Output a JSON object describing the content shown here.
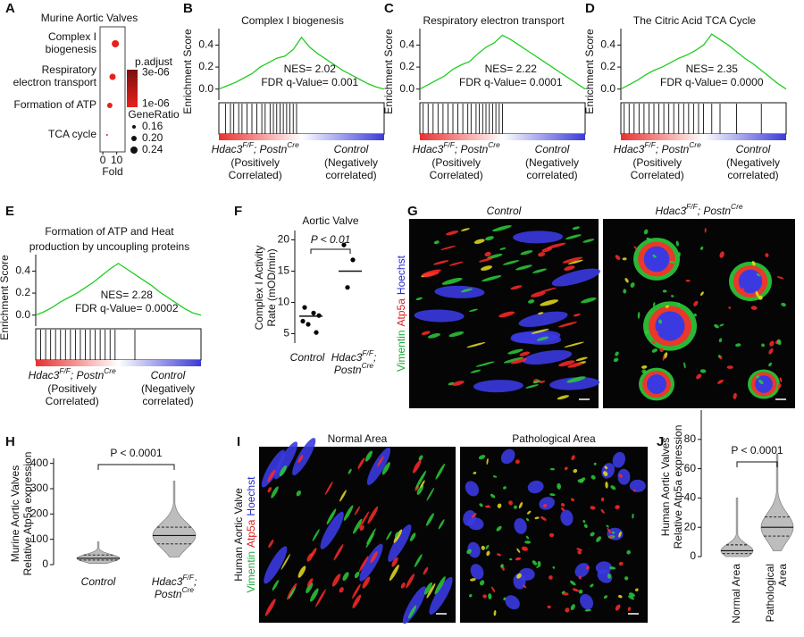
{
  "chart_data": [
    {
      "type": "dot",
      "letter": "A",
      "title": "Murine Aortic Valves",
      "categories": [
        [
          "Complex I",
          "biogenesis"
        ],
        [
          "Respiratory",
          "electron transport"
        ],
        [
          "Formation of ATP"
        ],
        [
          "TCA cycle"
        ]
      ],
      "fold": [
        9,
        7,
        5,
        3
      ],
      "gene_ratio": [
        0.24,
        0.22,
        0.2,
        0.12
      ],
      "p_adjust": [
        2e-07,
        5e-07,
        8e-07,
        1.2e-06
      ],
      "xlim": [
        -2,
        16
      ],
      "xticks": [
        0,
        10
      ],
      "xlabel": "Fold",
      "color_legend": {
        "title": "p.adjust",
        "ticks": [
          {
            "value": 3e-06,
            "label": "3e-06"
          },
          {
            "value": 1e-06,
            "label": "1e-06"
          }
        ],
        "low_color": "#e8201c",
        "high_color": "#7a1010"
      },
      "size_legend": {
        "title": "GeneRatio",
        "values": [
          {
            "value": 0.16,
            "label": "0.16"
          },
          {
            "value": 0.2,
            "label": "0.20"
          },
          {
            "value": 0.24,
            "label": "0.24"
          }
        ]
      }
    },
    {
      "type": "gsea",
      "letter": "B",
      "title": [
        "Complex I biogenesis"
      ],
      "ylabel": "Enrichment Score",
      "ylim": [
        -0.1,
        0.55
      ],
      "yticks": [
        {
          "value": 0,
          "label": "0.0"
        },
        0.2,
        0.4
      ],
      "es": [
        0,
        0.03,
        0.06,
        0.1,
        0.14,
        0.2,
        0.24,
        0.28,
        0.3,
        0.36,
        0.47,
        0.38,
        0.32,
        0.27,
        0.22,
        0.17,
        0.13,
        0.09,
        0.05,
        0.02,
        0
      ],
      "hits": [
        0.04,
        0.07,
        0.09,
        0.12,
        0.14,
        0.17,
        0.2,
        0.23,
        0.26,
        0.28,
        0.31,
        0.33,
        0.35,
        0.37,
        0.39,
        0.41,
        0.43,
        0.45,
        0.47
      ],
      "nes_text": "NES= 2.02",
      "fdr_text": "FDR q-Value= 0.001",
      "pos_label": [
        "Hdac3",
        "F/F",
        "; Postn",
        "Cre"
      ],
      "pos_sub": [
        "(Positively",
        "Correlated)"
      ],
      "neg_label": "Control",
      "neg_sub": [
        "(Negatively",
        "correlated)"
      ],
      "curve_color": "#22cc22",
      "pos_color": "#e8312f",
      "neg_color": "#3b3bd6"
    },
    {
      "type": "gsea",
      "letter": "C",
      "title": [
        "Respiratory electron transport"
      ],
      "ylabel": "Enrichment Score",
      "ylim": [
        -0.1,
        0.55
      ],
      "yticks": [
        {
          "value": 0,
          "label": "0.0"
        },
        0.2,
        0.4
      ],
      "es": [
        0,
        0.04,
        0.08,
        0.12,
        0.18,
        0.22,
        0.25,
        0.32,
        0.38,
        0.42,
        0.49,
        0.45,
        0.4,
        0.35,
        0.3,
        0.25,
        0.2,
        0.15,
        0.1,
        0.05,
        0
      ],
      "hits": [
        0.02,
        0.05,
        0.08,
        0.11,
        0.14,
        0.17,
        0.2,
        0.23,
        0.26,
        0.29,
        0.31,
        0.34,
        0.36,
        0.38,
        0.4,
        0.42,
        0.44,
        0.46,
        0.48,
        0.5
      ],
      "nes_text": "NES= 2.22",
      "fdr_text": "FDR q-Value= 0.0001",
      "pos_label": [
        "Hdac3",
        "F/F",
        "; Postn",
        "Cre"
      ],
      "pos_sub": [
        "(Positively",
        "Correlated)"
      ],
      "neg_label": "Control",
      "neg_sub": [
        "(Negatively",
        "correlated)"
      ],
      "curve_color": "#22cc22",
      "pos_color": "#e8312f",
      "neg_color": "#3b3bd6"
    },
    {
      "type": "gsea",
      "letter": "D",
      "title": [
        "The Citric Acid TCA Cycle"
      ],
      "ylabel": "Enrichment Score",
      "ylim": [
        -0.1,
        0.55
      ],
      "yticks": [
        {
          "value": 0,
          "label": "0.0"
        },
        0.2,
        0.4
      ],
      "es": [
        0,
        0.04,
        0.08,
        0.13,
        0.17,
        0.2,
        0.24,
        0.28,
        0.31,
        0.35,
        0.4,
        0.5,
        0.45,
        0.4,
        0.34,
        0.28,
        0.23,
        0.17,
        0.11,
        0.05,
        0
      ],
      "hits": [
        0.02,
        0.05,
        0.08,
        0.11,
        0.14,
        0.17,
        0.2,
        0.23,
        0.26,
        0.29,
        0.32,
        0.35,
        0.38,
        0.41,
        0.44,
        0.47,
        0.5,
        0.55,
        0.6,
        0.7,
        0.85
      ],
      "nes_text": "NES= 2.35",
      "fdr_text": "FDR q-Value= 0.0000",
      "pos_label": [
        "Hdac3",
        "F/F",
        "; Postn",
        "Cre"
      ],
      "pos_sub": [
        "(Positively",
        "Correlated)"
      ],
      "neg_label": "Control",
      "neg_sub": [
        "(Negatively",
        "correlated)"
      ],
      "curve_color": "#22cc22",
      "pos_color": "#e8312f",
      "neg_color": "#3b3bd6"
    },
    {
      "type": "gsea",
      "letter": "E",
      "title": [
        "Formation of ATP and Heat",
        "production by uncoupling proteins"
      ],
      "ylabel": "Enrichment Score",
      "ylim": [
        -0.1,
        0.55
      ],
      "yticks": [
        {
          "value": 0,
          "label": "0.0"
        },
        0.2,
        0.4
      ],
      "es": [
        0,
        0.03,
        0.07,
        0.12,
        0.16,
        0.2,
        0.25,
        0.3,
        0.36,
        0.42,
        0.47,
        0.42,
        0.37,
        0.32,
        0.27,
        0.21,
        0.16,
        0.11,
        0.06,
        0.02,
        0
      ],
      "hits": [
        0.03,
        0.06,
        0.09,
        0.12,
        0.15,
        0.18,
        0.21,
        0.24,
        0.27,
        0.3,
        0.33,
        0.36,
        0.39,
        0.42,
        0.45,
        0.48,
        0.6
      ],
      "nes_text": "NES= 2.28",
      "fdr_text": "FDR q-Value= 0.0002",
      "pos_label": [
        "Hdac3",
        "F/F",
        "; Postn",
        "Cre"
      ],
      "pos_sub": [
        "(Positively",
        "Correlated)"
      ],
      "neg_label": "Control",
      "neg_sub": [
        "(Negatively",
        "correlated)"
      ],
      "curve_color": "#22cc22",
      "pos_color": "#e8312f",
      "neg_color": "#3b3bd6"
    },
    {
      "type": "strip",
      "letter": "F",
      "title": "Aortic Valve",
      "ylabel": [
        "Complex I Activity",
        "Rate (mOD/min)"
      ],
      "categories": [
        [
          [
            "Control"
          ]
        ],
        [
          [
            "Hdac3",
            "F/F",
            ";"
          ],
          [
            "Postn",
            "Cre"
          ]
        ]
      ],
      "italic": true,
      "values": [
        [
          9.2,
          8.3,
          6.5,
          5.2,
          7.0,
          7.9
        ],
        [
          19.2,
          16.8,
          12.4
        ]
      ],
      "medians": [
        7.8,
        15
      ],
      "ylim": [
        3.5,
        21.5
      ],
      "yticks": [
        5,
        10,
        15,
        20
      ],
      "p_text": "P < 0.01",
      "color": "#000000"
    },
    {
      "type": "violin",
      "letter": "H",
      "ylabel": [
        "Murine Aortic Valves",
        "Relative Atp5a expression"
      ],
      "categories": [
        [
          [
            "Control"
          ]
        ],
        [
          [
            "Hdac3",
            "F/F",
            ";"
          ],
          [
            "Postn",
            "Cre"
          ]
        ]
      ],
      "italic": true,
      "rotate_labels": false,
      "stats": [
        {
          "min": 5,
          "q1": 18,
          "median": 25,
          "q3": 38,
          "max": 90
        },
        {
          "min": 30,
          "q1": 82,
          "median": 115,
          "q3": 148,
          "max": 330
        }
      ],
      "ylim": [
        0,
        420
      ],
      "yticks": [
        0,
        100,
        200,
        300,
        400
      ],
      "p_text": "P < 0.0001",
      "color": "#bdbdbd"
    },
    {
      "type": "violin",
      "letter": "J",
      "ylabel": [
        "Human Aortic Valves",
        "Relative Atp5a expression"
      ],
      "categories": [
        [
          [
            "Normal Area"
          ]
        ],
        [
          [
            "Pathological"
          ],
          [
            "Area"
          ]
        ]
      ],
      "italic": false,
      "rotate_labels": true,
      "stats": [
        {
          "min": 0,
          "q1": 2,
          "median": 4,
          "q3": 8,
          "max": 40
        },
        {
          "min": 4,
          "q1": 14,
          "median": 20,
          "q3": 27,
          "max": 70
        }
      ],
      "ylim": [
        0,
        100
      ],
      "yticks": [
        0,
        20,
        40,
        60,
        80
      ],
      "p_text": "P < 0.0001",
      "color": "#bdbdbd"
    }
  ],
  "micrographs": [
    {
      "letter": "G",
      "titles": [
        [
          "Control"
        ],
        [
          "Hdac3",
          "F/F",
          "; Postn",
          "Cre"
        ]
      ],
      "italic": true,
      "stain": [
        {
          "text": "Vimentin",
          "color": "#1faa3a"
        },
        {
          "text": "Atp5a",
          "color": "#e02020"
        },
        {
          "text": "Hoechst",
          "color": "#2a2ad0"
        }
      ]
    },
    {
      "letter": "I",
      "titles": [
        [
          "Normal Area"
        ],
        [
          "Pathological Area"
        ]
      ],
      "italic": false,
      "side_label": "Human Aortic Valve",
      "stain": [
        {
          "text": "Vimentin",
          "color": "#1faa3a"
        },
        {
          "text": "Atp5a",
          "color": "#e02020"
        },
        {
          "text": "Hoechst",
          "color": "#2a2ad0"
        }
      ]
    }
  ]
}
